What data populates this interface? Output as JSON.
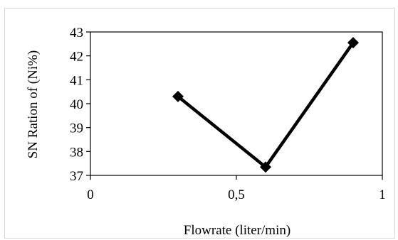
{
  "chart_data": {
    "type": "line",
    "title": "",
    "xlabel": "Flowrate (liter/min)",
    "ylabel": "SN Ration  of (Ni%)",
    "xlim": [
      0,
      1
    ],
    "ylim": [
      37,
      43
    ],
    "x_ticks": [
      "0",
      "0,5",
      "1"
    ],
    "x_tick_values": [
      0,
      0.5,
      1
    ],
    "y_ticks": [
      "37",
      "38",
      "39",
      "40",
      "41",
      "42",
      "43"
    ],
    "y_tick_values": [
      37,
      38,
      39,
      40,
      41,
      42,
      43
    ],
    "grid": false,
    "series": [
      {
        "x": [
          0.3,
          0.6,
          0.9
        ],
        "values": [
          40.3,
          37.35,
          42.55
        ],
        "color": "#000000",
        "marker": "diamond"
      }
    ]
  }
}
